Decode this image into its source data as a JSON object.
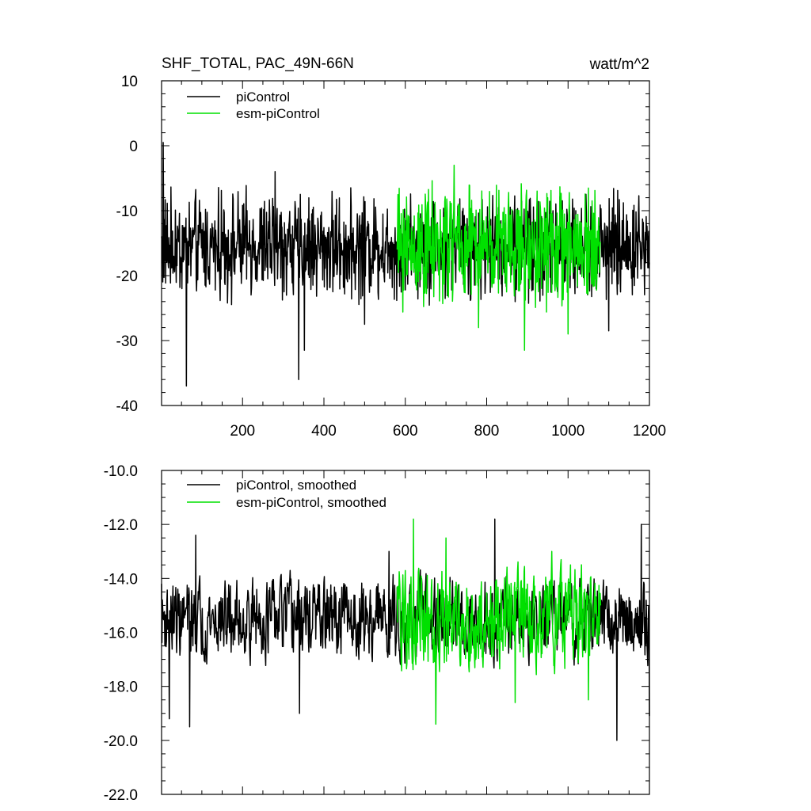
{
  "chart_data": [
    {
      "type": "line",
      "title": "SHF_TOTAL, PAC_49N-66N",
      "units": "watt/m^2",
      "xlim": [
        1,
        1200
      ],
      "ylim": [
        -40,
        10
      ],
      "x_ticks": [
        200,
        400,
        600,
        800,
        1000,
        1200
      ],
      "x_tick_labels": [
        "200",
        "400",
        "600",
        "800",
        "1000",
        "1200"
      ],
      "y_ticks": [
        10,
        0,
        -10,
        -20,
        -30,
        -40
      ],
      "y_tick_labels": [
        "10",
        "0",
        "-10",
        "-20",
        "-30",
        "-40"
      ],
      "legend_placement": "top-left",
      "series": [
        {
          "name": "piControl",
          "color": "#000000",
          "x_range": [
            1,
            1200
          ],
          "points_count": 1200,
          "typical_range": [
            -23,
            -8
          ],
          "anchors": [
            [
              1,
              -14
            ],
            [
              5,
              0.5
            ],
            [
              20,
              -18
            ],
            [
              62,
              -37
            ],
            [
              150,
              -15
            ],
            [
              280,
              -4
            ],
            [
              338,
              -36
            ],
            [
              352,
              -31.5
            ],
            [
              500,
              -27.5
            ],
            [
              580,
              -16
            ],
            [
              1100,
              -28.5
            ],
            [
              1200,
              -18
            ]
          ]
        },
        {
          "name": "esm-piControl",
          "color": "#00e000",
          "x_range": [
            580,
            1080
          ],
          "points_count": 500,
          "typical_range": [
            -24,
            -7
          ],
          "anchors": [
            [
              580,
              -16
            ],
            [
              650,
              -9
            ],
            [
              720,
              -3
            ],
            [
              780,
              -28
            ],
            [
              893,
              -31.5
            ],
            [
              950,
              -8
            ],
            [
              1000,
              -29
            ],
            [
              1080,
              -15
            ]
          ]
        }
      ]
    },
    {
      "type": "line",
      "title": "",
      "xlim": [
        1,
        1200
      ],
      "ylim": [
        -22,
        -10
      ],
      "x_ticks": [
        200,
        400,
        600,
        800,
        1000,
        1200
      ],
      "y_ticks": [
        -10,
        -12,
        -14,
        -16,
        -18,
        -20,
        -22
      ],
      "y_tick_labels": [
        "-10.0",
        "-12.0",
        "-14.0",
        "-16.0",
        "-18.0",
        "-20.0",
        "-22.0"
      ],
      "legend_placement": "top-left",
      "series": [
        {
          "name": "piControl, smoothed",
          "color": "#000000",
          "x_range": [
            1,
            1200
          ],
          "points_count": 1200,
          "typical_range": [
            -17.5,
            -13.5
          ],
          "anchors": [
            [
              1,
              -14.2
            ],
            [
              20,
              -19.2
            ],
            [
              70,
              -19.5
            ],
            [
              85,
              -12.4
            ],
            [
              340,
              -19
            ],
            [
              560,
              -13
            ],
            [
              820,
              -11.8
            ],
            [
              1120,
              -20
            ],
            [
              1180,
              -12
            ],
            [
              1200,
              -19.1
            ]
          ]
        },
        {
          "name": "esm-piControl, smoothed",
          "color": "#00e000",
          "x_range": [
            580,
            1080
          ],
          "points_count": 500,
          "typical_range": [
            -18,
            -13
          ],
          "anchors": [
            [
              580,
              -14.3
            ],
            [
              620,
              -11.8
            ],
            [
              675,
              -19.4
            ],
            [
              700,
              -12.5
            ],
            [
              870,
              -18.6
            ],
            [
              960,
              -13
            ],
            [
              1050,
              -18.5
            ],
            [
              1080,
              -15
            ]
          ]
        }
      ]
    }
  ]
}
